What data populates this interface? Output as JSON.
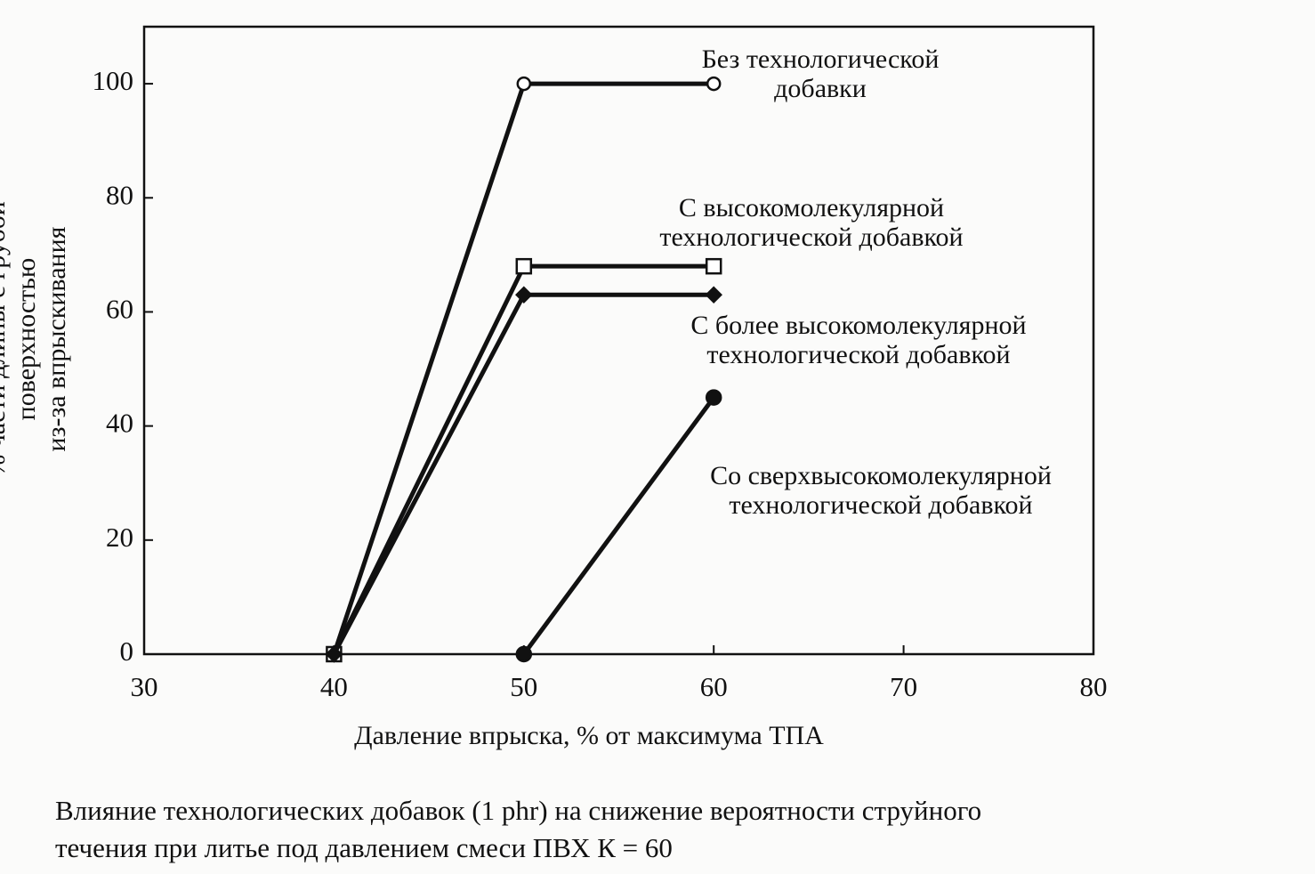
{
  "chart_data": {
    "type": "line",
    "title": "Влияние технологических добавок (1 phr) на снижение вероятности струйного\nтечения при литье под давлением смеси ПВХ К = 60",
    "x_label": "Давление впрыска, % от максимума ТПА",
    "y_label": "% части длины с грубой поверхностью\nиз-за впрыскивания",
    "xlim": [
      30,
      80
    ],
    "xticks": [
      30,
      40,
      50,
      60,
      70,
      80
    ],
    "ylim": [
      0,
      110
    ],
    "yticks": [
      0,
      20,
      40,
      60,
      80,
      100
    ],
    "series": [
      {
        "name": "Без технологической\nдобавки",
        "color": "#111111",
        "marker": "open-circle",
        "x": [
          40,
          50,
          60
        ],
        "values": [
          0,
          100,
          100
        ]
      },
      {
        "name": "С высокомолекулярной\nтехнологической добавкой",
        "color": "#111111",
        "marker": "open-square",
        "x": [
          40,
          50,
          60
        ],
        "values": [
          0,
          68,
          68
        ]
      },
      {
        "name": "С более высокомолекулярной\nтехнологической добавкой",
        "color": "#111111",
        "marker": "diamond",
        "x": [
          40,
          50,
          60
        ],
        "values": [
          0,
          63,
          63
        ]
      },
      {
        "name": "Со  сверхвысокомолекулярной\nтехнологической добавкой",
        "color": "#111111",
        "marker": "circle",
        "x": [
          50,
          60
        ],
        "values": [
          0,
          45
        ]
      }
    ]
  }
}
